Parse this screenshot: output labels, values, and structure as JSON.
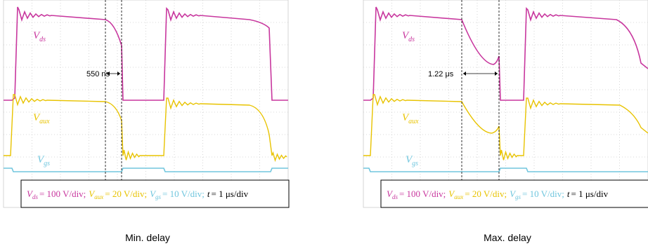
{
  "panels": [
    {
      "caption": "Min. delay",
      "delay_label": "550 ns",
      "trace_labels": [
        {
          "symbol": "V",
          "subscript": "ds"
        },
        {
          "symbol": "V",
          "subscript": "aux"
        },
        {
          "symbol": "V",
          "subscript": "gs"
        }
      ],
      "scale": [
        {
          "symbol": "V",
          "subscript": "ds",
          "text": "= 100 V/div;"
        },
        {
          "symbol": "V",
          "subscript": "aux",
          "text": "= 20 V/div;"
        },
        {
          "symbol": "V",
          "subscript": "gs",
          "text": "= 10 V/div;"
        },
        {
          "symbol": "t",
          "text": "= 1 μs/div"
        }
      ]
    },
    {
      "caption": "Max. delay",
      "delay_label": "1.22 μs",
      "trace_labels": [
        {
          "symbol": "V",
          "subscript": "ds"
        },
        {
          "symbol": "V",
          "subscript": "aux"
        },
        {
          "symbol": "V",
          "subscript": "gs"
        }
      ],
      "scale": [
        {
          "symbol": "V",
          "subscript": "ds",
          "text": "= 100 V/div;"
        },
        {
          "symbol": "V",
          "subscript": "aux",
          "text": "= 20 V/div;"
        },
        {
          "symbol": "V",
          "subscript": "gs",
          "text": "= 10 V/div;"
        },
        {
          "symbol": "t",
          "text": "= 1 μs/div"
        }
      ]
    }
  ]
}
